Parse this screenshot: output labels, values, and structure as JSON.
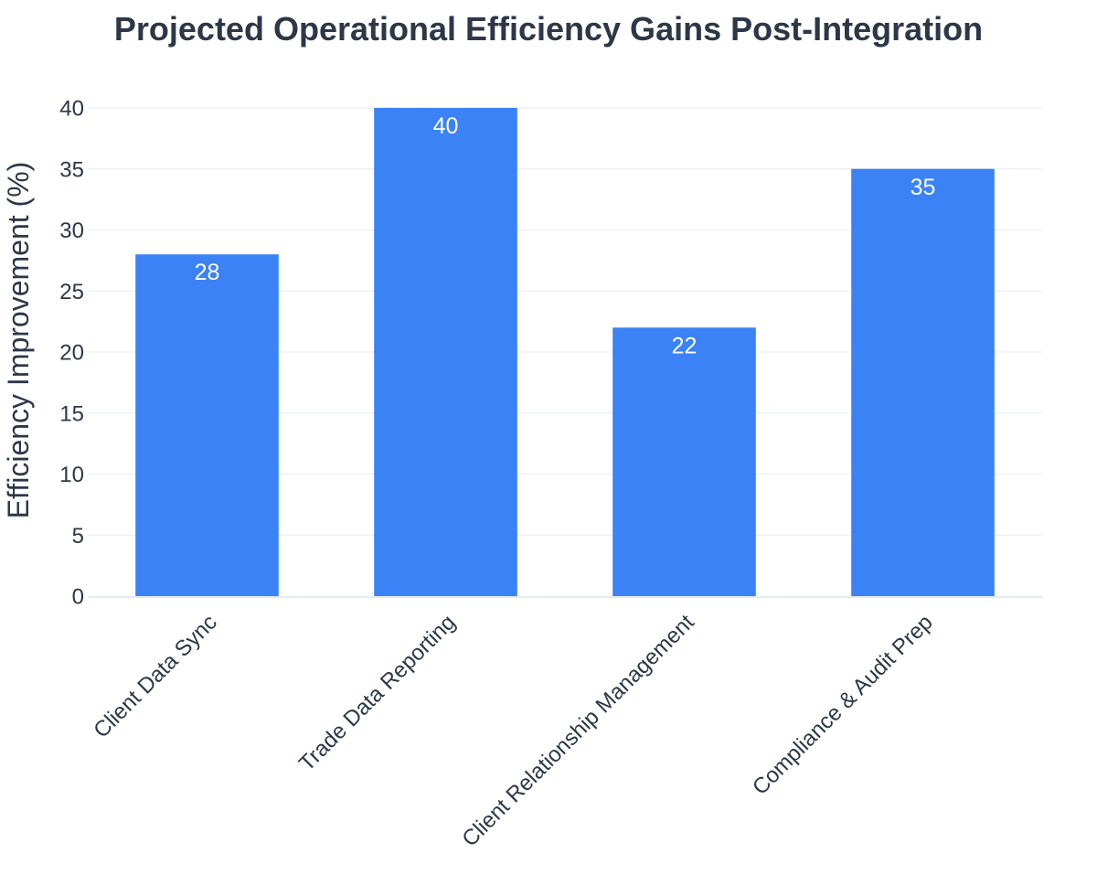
{
  "chart_data": {
    "type": "bar",
    "title": "Projected Operational Efficiency Gains Post-Integration",
    "xlabel": "",
    "ylabel": "Efficiency Improvement (%)",
    "categories": [
      "Client Data Sync",
      "Trade Data Reporting",
      "Client Relationship Management",
      "Compliance & Audit Prep"
    ],
    "values": [
      28,
      40,
      22,
      35
    ],
    "data_labels": [
      "28",
      "40",
      "22",
      "35"
    ],
    "ylim": [
      0,
      40
    ],
    "yticks": [
      0,
      5,
      10,
      15,
      20,
      25,
      30,
      35,
      40
    ],
    "ytick_labels": [
      "0",
      "5",
      "10",
      "15",
      "20",
      "25",
      "30",
      "35",
      "40"
    ],
    "grid": true,
    "legend": "none",
    "colors": {
      "bar": "#3b82f6",
      "title": "#2d3748",
      "text": "#2d3748",
      "grid": "#e6ecf2",
      "axis": "#e3ebf5",
      "data_label": "#ffffff"
    }
  }
}
